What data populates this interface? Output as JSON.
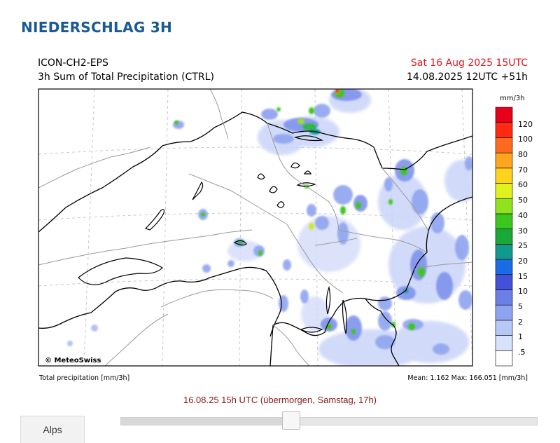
{
  "page": {
    "title": "NIEDERSCHLAG 3H"
  },
  "map": {
    "model": "ICON-CH2-EPS",
    "product": "3h Sum of Total Precipitation (CTRL)",
    "valid_time": "Sat 16 Aug 2025 15UTC",
    "run_time": "14.08.2025 12UTC +51h",
    "copyright": "© MeteoSwiss",
    "footer_left": "Total precipitation [mm/3h]",
    "footer_right": "Mean:  1.162 Max: 166.051 [mm/3h]",
    "legend": {
      "unit": "mm/3h",
      "levels": [
        {
          "label": ".5",
          "color": "#ffffff"
        },
        {
          "label": "1",
          "color": "#d9e2fb"
        },
        {
          "label": "2",
          "color": "#b7c7f6"
        },
        {
          "label": "5",
          "color": "#8fa4f0"
        },
        {
          "label": "10",
          "color": "#6b7fe6"
        },
        {
          "label": "15",
          "color": "#4351d8"
        },
        {
          "label": "20",
          "color": "#1c6be6"
        },
        {
          "label": "25",
          "color": "#109a8c"
        },
        {
          "label": "30",
          "color": "#1aa83a"
        },
        {
          "label": "40",
          "color": "#3ac71e"
        },
        {
          "label": "50",
          "color": "#8fe31e"
        },
        {
          "label": "60",
          "color": "#e0f21e"
        },
        {
          "label": "70",
          "color": "#ffd21e"
        },
        {
          "label": "80",
          "color": "#ffa51e"
        },
        {
          "label": "100",
          "color": "#ff6a1e"
        },
        {
          "label": "120",
          "color": "#ff2a12"
        },
        {
          "label": "",
          "color": "#e6001a"
        }
      ]
    }
  },
  "timeline": {
    "current_label": "16.08.25 15h UTC (übermorgen, Samstag, 17h)",
    "position": 0.41
  },
  "region": {
    "label": "Alps"
  },
  "colors": {
    "title": "#1a5a93",
    "valid_time": "#e0161e",
    "time_label": "#8b1a1a"
  }
}
